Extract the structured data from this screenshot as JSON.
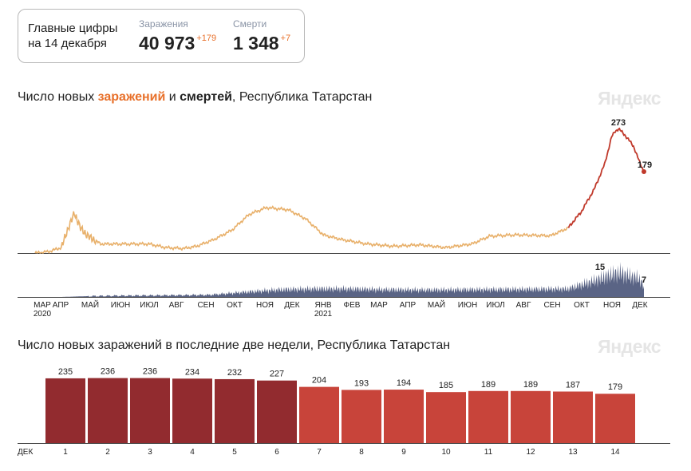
{
  "summary": {
    "title_line1": "Главные цифры",
    "title_line2": "на 14 декабря",
    "cases_label": "Заражения",
    "cases_value": "40 973",
    "cases_delta": "+179",
    "deaths_label": "Смерти",
    "deaths_value": "1 348",
    "deaths_delta": "+7"
  },
  "logo_text": "Яндекс",
  "colors": {
    "infections_line": "#e8b06a",
    "infections_recent": "#c0392b",
    "deaths_area": "#5a6485",
    "bar_dark": "#922b2f",
    "bar_light": "#c8443a",
    "weekend": "#e8702a",
    "axis": "#444444"
  },
  "chart_data": [
    {
      "type": "line",
      "title_parts": [
        "Число новых ",
        "заражений",
        " и ",
        "смертей",
        ", Республика Татарстан"
      ],
      "months": [
        "МАР",
        "АПР",
        "МАЙ",
        "ИЮН",
        "ИЮЛ",
        "АВГ",
        "СЕН",
        "ОКТ",
        "НОЯ",
        "ДЕК",
        "ЯНВ",
        "ФЕВ",
        "МАР",
        "АПР",
        "МАЙ",
        "ИЮН",
        "ИЮЛ",
        "АВГ",
        "СЕН",
        "ОКТ",
        "НОЯ",
        "ДЕК"
      ],
      "years": [
        "2020",
        "2021"
      ],
      "infections": {
        "keypoints": [
          [
            0,
            0
          ],
          [
            15,
            3
          ],
          [
            30,
            12
          ],
          [
            38,
            55
          ],
          [
            45,
            88
          ],
          [
            52,
            55
          ],
          [
            60,
            38
          ],
          [
            75,
            20
          ],
          [
            100,
            20
          ],
          [
            130,
            20
          ],
          [
            150,
            12
          ],
          [
            170,
            10
          ],
          [
            185,
            15
          ],
          [
            205,
            30
          ],
          [
            225,
            50
          ],
          [
            245,
            85
          ],
          [
            265,
            100
          ],
          [
            290,
            95
          ],
          [
            310,
            75
          ],
          [
            330,
            40
          ],
          [
            350,
            30
          ],
          [
            380,
            20
          ],
          [
            410,
            15
          ],
          [
            440,
            18
          ],
          [
            470,
            12
          ],
          [
            500,
            20
          ],
          [
            520,
            37
          ],
          [
            550,
            40
          ],
          [
            590,
            38
          ],
          [
            610,
            55
          ],
          [
            625,
            90
          ],
          [
            640,
            140
          ],
          [
            652,
            195
          ],
          [
            660,
            255
          ],
          [
            664,
            268
          ],
          [
            668,
            273
          ],
          [
            675,
            260
          ],
          [
            685,
            235
          ],
          [
            692,
            200
          ],
          [
            697,
            179
          ]
        ],
        "peak_label": "273",
        "last_label": "179"
      },
      "deaths": {
        "keypoints": [
          [
            0,
            0
          ],
          [
            30,
            0
          ],
          [
            60,
            0.5
          ],
          [
            100,
            0.8
          ],
          [
            150,
            1
          ],
          [
            200,
            1.3
          ],
          [
            240,
            3
          ],
          [
            280,
            4.5
          ],
          [
            320,
            5
          ],
          [
            360,
            5
          ],
          [
            400,
            4.5
          ],
          [
            450,
            4.3
          ],
          [
            500,
            4.5
          ],
          [
            560,
            4.7
          ],
          [
            610,
            5
          ],
          [
            640,
            10
          ],
          [
            660,
            14
          ],
          [
            670,
            15
          ],
          [
            680,
            13
          ],
          [
            690,
            12
          ],
          [
            697,
            7
          ]
        ],
        "peak_label": "15",
        "last_label": "7"
      }
    },
    {
      "type": "bar",
      "title": "Число новых заражений в последние две недели, Республика Татарстан",
      "month_label": "ДЕК",
      "categories": [
        "1",
        "2",
        "3",
        "4",
        "5",
        "6",
        "7",
        "8",
        "9",
        "10",
        "11",
        "12",
        "13",
        "14"
      ],
      "values": [
        235,
        236,
        236,
        234,
        232,
        227,
        204,
        193,
        194,
        185,
        189,
        189,
        187,
        179
      ],
      "highlighted_days": [
        "4",
        "5",
        "11",
        "12"
      ],
      "dark_until_index": 5
    }
  ]
}
